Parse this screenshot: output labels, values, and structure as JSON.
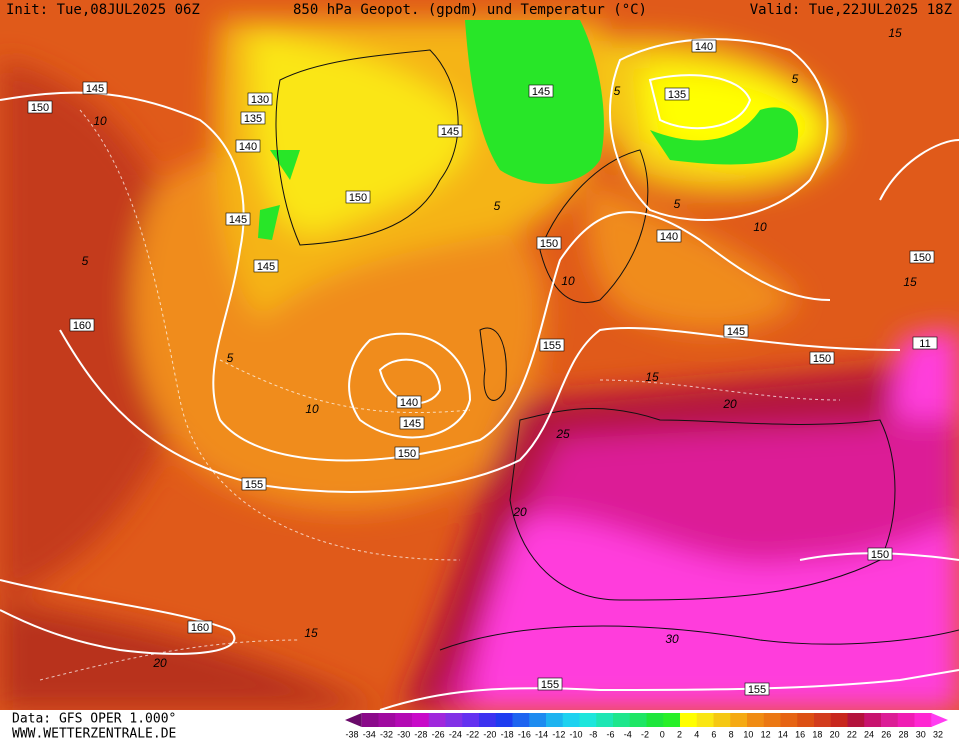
{
  "header": {
    "init": "Init: Tue,08JUL2025 06Z",
    "title": "850 hPa Geopot. (gpdm) und Temperatur (°C)",
    "valid": "Valid: Tue,22JUL2025 18Z"
  },
  "footer": {
    "data": "Data: GFS OPER 1.000°",
    "site": "WWW.WETTERZENTRALE.DE"
  },
  "geopotential_labels": [
    "145",
    "150",
    "130",
    "135",
    "140",
    "145",
    "145",
    "160",
    "150",
    "145",
    "145",
    "140",
    "135",
    "140",
    "150",
    "155",
    "140",
    "145",
    "150",
    "155",
    "145",
    "150",
    "150",
    "11",
    "150",
    "160",
    "155",
    "155"
  ],
  "temperature_labels": [
    "10",
    "5",
    "5",
    "10",
    "5",
    "5",
    "5",
    "5",
    "10",
    "15",
    "15",
    "15",
    "20",
    "25",
    "20",
    "30",
    "15",
    "20",
    "10"
  ],
  "colorbar": {
    "labels": [
      "-38",
      "-34",
      "-32",
      "-30",
      "-28",
      "-26",
      "-24",
      "-22",
      "-20",
      "-18",
      "-16",
      "-14",
      "-12",
      "-10",
      "-8",
      "-6",
      "-4",
      "-2",
      "0",
      "2",
      "4",
      "6",
      "8",
      "10",
      "12",
      "14",
      "16",
      "18",
      "20",
      "22",
      "24",
      "26",
      "28",
      "30",
      "32"
    ],
    "colors": [
      "#6a0a6a",
      "#8a0a8a",
      "#a00aa0",
      "#b40ab4",
      "#c80ac8",
      "#a028dc",
      "#8232e6",
      "#6432f0",
      "#3c32f0",
      "#1e3cf0",
      "#1e64f0",
      "#1e8cf0",
      "#1eb4f0",
      "#1ed2f0",
      "#1ee6dc",
      "#1ee6b4",
      "#1ee68c",
      "#1ee664",
      "#1ee63c",
      "#28f028",
      "#ffff00",
      "#fae614",
      "#f5c814",
      "#f5aa14",
      "#f08c14",
      "#eb7814",
      "#e66414",
      "#dc5014",
      "#d23c1e",
      "#c8281e",
      "#b4143c",
      "#c8146e",
      "#dc1e96",
      "#f01eb4",
      "#ff28d2",
      "#ff3cf0"
    ]
  }
}
